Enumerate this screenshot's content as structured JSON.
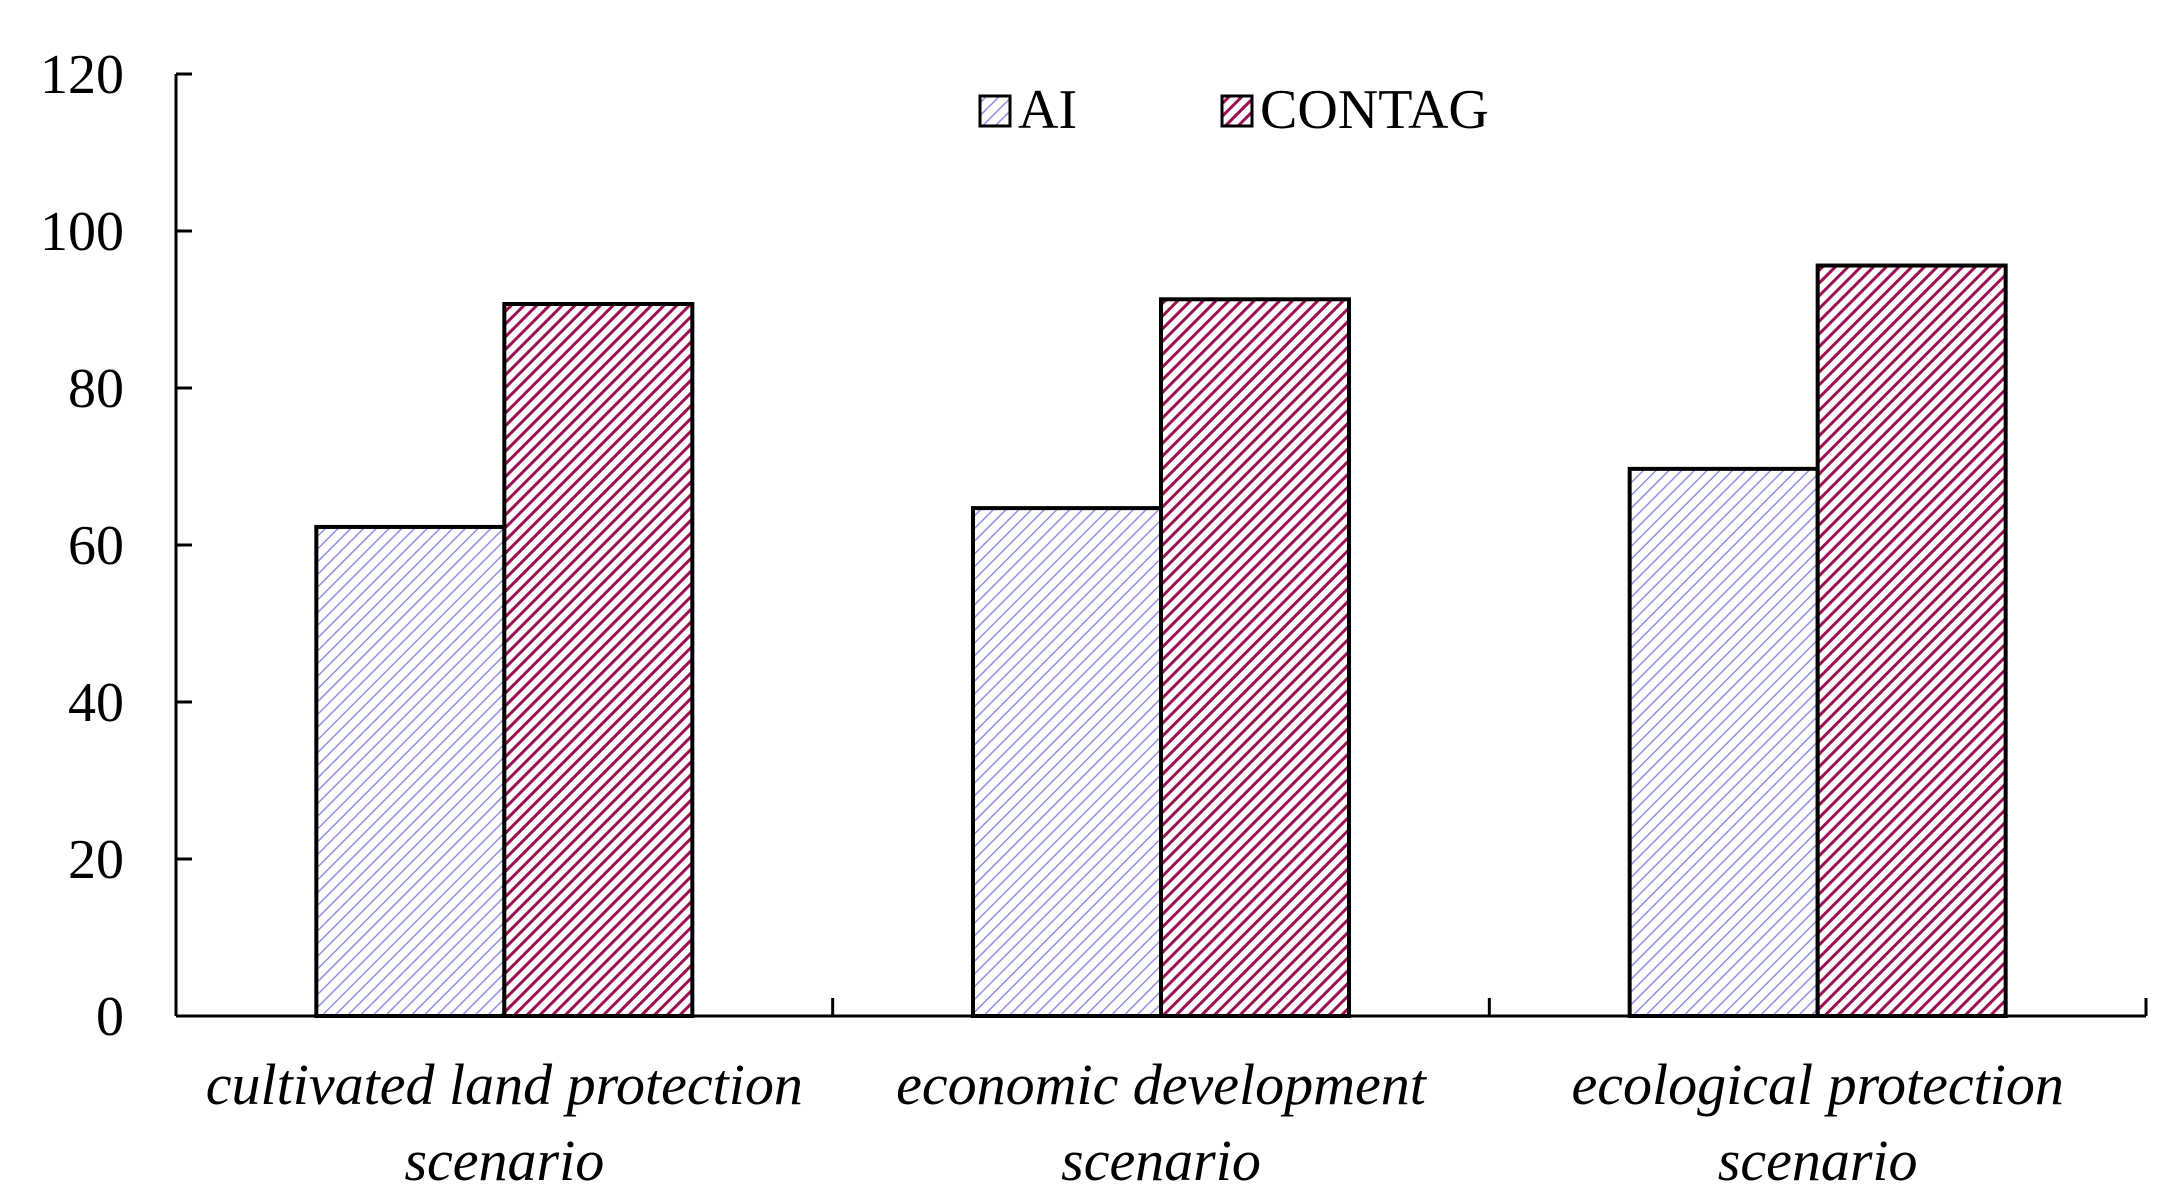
{
  "chart_data": {
    "type": "bar",
    "title": "",
    "xlabel": "",
    "ylabel": "",
    "ylim": [
      0,
      120
    ],
    "yticks": [
      0,
      20,
      40,
      60,
      80,
      100,
      120
    ],
    "categories": [
      [
        "cultivated land protection",
        "scenario"
      ],
      [
        "economic development",
        "scenario"
      ],
      [
        "ecological protection",
        "scenario"
      ]
    ],
    "series": [
      {
        "name": "AI",
        "values": [
          62.3,
          64.7,
          69.7
        ],
        "color": "#b8b8f0",
        "pattern": "light-diagonal"
      },
      {
        "name": "CONTAG",
        "values": [
          90.7,
          91.3,
          95.6
        ],
        "color": "#a0185a",
        "pattern": "dark-diagonal"
      }
    ],
    "legend": "top-center"
  }
}
